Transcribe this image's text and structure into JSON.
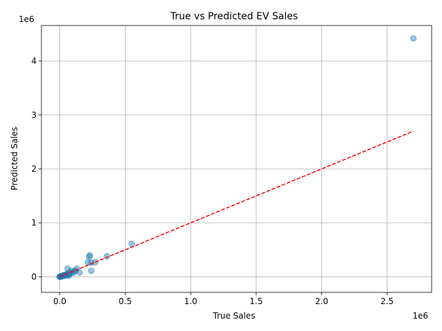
{
  "chart_data": {
    "type": "scatter",
    "title": "True vs Predicted EV Sales",
    "xlabel": "True Sales",
    "ylabel": "Predicted Sales",
    "x_offset_label": "1e6",
    "y_offset_label": "1e6",
    "xlim": [
      -140000,
      2840000
    ],
    "ylim": [
      -290000,
      4660000
    ],
    "x_ticks": [
      0,
      0.5,
      1.0,
      1.5,
      2.0,
      2.5
    ],
    "x_tick_labels": [
      "0.0",
      "0.5",
      "1.0",
      "1.5",
      "2.0",
      "2.5"
    ],
    "y_ticks": [
      0,
      1,
      2,
      3,
      4
    ],
    "y_tick_labels": [
      "0",
      "1",
      "2",
      "3",
      "4"
    ],
    "tick_scale": 1000000,
    "grid": true,
    "point_color": "#1f77b4",
    "point_alpha": 0.45,
    "reference_line": {
      "label": "",
      "color": "#ff0000",
      "style": "dashed",
      "x": [
        0,
        2700000
      ],
      "y": [
        0,
        2700000
      ]
    },
    "series": [
      {
        "x": [
          2700000,
          550000,
          360000,
          270000,
          230000,
          225000,
          215000,
          240000,
          240000,
          130000,
          120000,
          110000,
          100000,
          150000,
          60000,
          65000,
          75000,
          80000,
          90000,
          70000,
          50000,
          40000,
          30000,
          20000,
          15000,
          10000,
          8000,
          5000,
          3000,
          1000,
          0,
          2000,
          12000,
          25000,
          35000,
          45000,
          55000,
          6000,
          4000,
          18000
        ],
        "y": [
          4420000,
          610000,
          380000,
          270000,
          400000,
          370000,
          270000,
          260000,
          110000,
          150000,
          110000,
          100000,
          70000,
          80000,
          150000,
          40000,
          80000,
          60000,
          110000,
          20000,
          30000,
          20000,
          30000,
          10000,
          15000,
          5000,
          8000,
          0,
          2000,
          1000,
          0,
          3000,
          10000,
          20000,
          30000,
          40000,
          50000,
          4000,
          6000,
          12000
        ]
      }
    ]
  }
}
